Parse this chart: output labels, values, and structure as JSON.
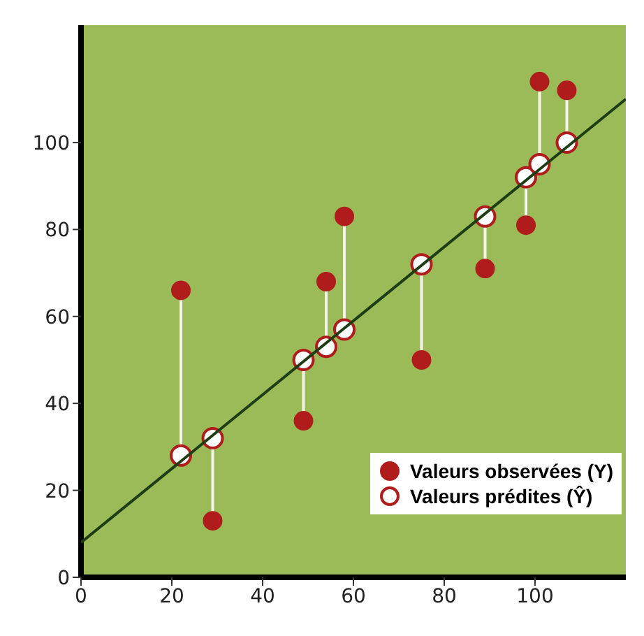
{
  "chart_data": {
    "type": "scatter",
    "x": [
      22,
      29,
      49,
      54,
      58,
      75,
      89,
      98,
      101,
      107
    ],
    "series": [
      {
        "name": "Valeurs observées (Y)",
        "color": "#b01c1c",
        "values": [
          66,
          13,
          36,
          68,
          83,
          50,
          71,
          81,
          114,
          112
        ],
        "errors": [
          [
            28,
            66
          ],
          [
            13,
            32
          ],
          [
            36,
            50
          ],
          [
            53,
            68
          ],
          [
            57,
            83
          ],
          [
            50,
            72
          ],
          [
            71,
            83
          ],
          [
            81,
            92
          ],
          [
            95,
            114
          ],
          [
            100,
            112
          ]
        ]
      },
      {
        "name": "Valeurs prédites (Ŷ)",
        "color": "#ffffff",
        "values": [
          28,
          32,
          50,
          53,
          57,
          72,
          83,
          92,
          95,
          100
        ]
      },
      {
        "type": "line",
        "color": "#1e3d14",
        "x": [
          0,
          120
        ],
        "values": [
          8,
          110
        ],
        "marker": "none"
      }
    ],
    "xlim": [
      0,
      120
    ],
    "xticks": [
      0,
      20,
      40,
      60,
      80,
      100
    ],
    "ylim": [
      0,
      127
    ],
    "yticks": [
      0,
      20,
      40,
      60,
      80,
      100
    ],
    "legend": "bottom right",
    "marker": "circle",
    "line_style": "solid"
  }
}
